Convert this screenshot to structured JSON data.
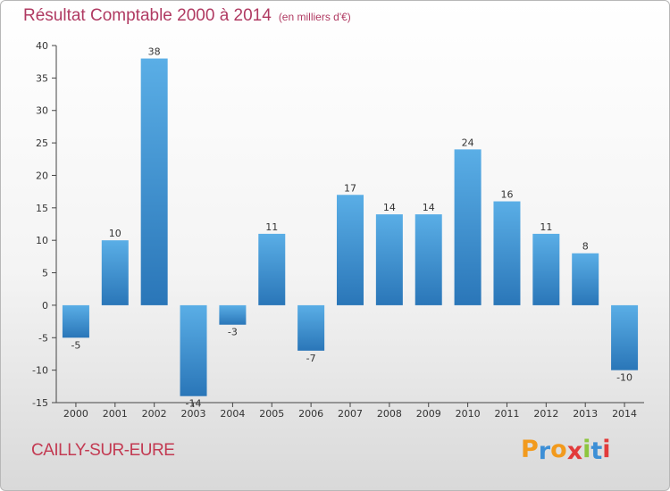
{
  "title": "Résultat Comptable 2000 à 2014",
  "subtitle": "(en milliers d'€)",
  "location": "CAILLY-SUR-EURE",
  "logo": {
    "letters": [
      "P",
      "r",
      "o",
      "x",
      "i",
      "t",
      "i"
    ],
    "colors": [
      "#f29a1d",
      "#3d8fd6",
      "#f29a1d",
      "#e23b3b",
      "#8dc63f",
      "#3d8fd6",
      "#e23b3b"
    ]
  },
  "colors": {
    "bar_top": "#5aaee6",
    "bar_bottom": "#2a76b8",
    "title": "#b03a62",
    "location": "#c33a52"
  },
  "chart_data": {
    "type": "bar",
    "categories": [
      "2000",
      "2001",
      "2002",
      "2003",
      "2004",
      "2005",
      "2006",
      "2007",
      "2008",
      "2009",
      "2010",
      "2011",
      "2012",
      "2013",
      "2014"
    ],
    "values": [
      -5,
      10,
      38,
      -14,
      -3,
      11,
      -7,
      17,
      14,
      14,
      24,
      16,
      11,
      8,
      -10
    ],
    "ylim": [
      -15,
      40
    ],
    "yticks": [
      -15,
      -10,
      -5,
      0,
      5,
      10,
      15,
      20,
      25,
      30,
      35,
      40
    ],
    "grid": false
  }
}
